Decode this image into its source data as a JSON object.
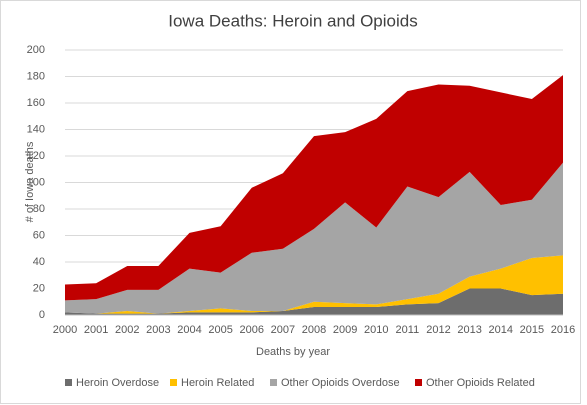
{
  "chart_data": {
    "type": "stacked_area",
    "title": "Iowa Deaths: Heroin and Opioids",
    "x_label": "Deaths by year",
    "y_label": "# of Iowa deaths",
    "categories": [
      "2000",
      "2001",
      "2002",
      "2003",
      "2004",
      "2005",
      "2006",
      "2007",
      "2008",
      "2009",
      "2010",
      "2011",
      "2012",
      "2013",
      "2014",
      "2015",
      "2016"
    ],
    "series": [
      {
        "name": "Heroin Overdose",
        "color": "#6d6d6d",
        "values": [
          2,
          1,
          1,
          1,
          2,
          2,
          2,
          3,
          6,
          6,
          6,
          8,
          9,
          20,
          20,
          15,
          16
        ]
      },
      {
        "name": "Heroin Related",
        "color": "#ffc000",
        "values": [
          0,
          0,
          2,
          0,
          1,
          3,
          1,
          0,
          4,
          3,
          2,
          4,
          7,
          9,
          15,
          28,
          29
        ]
      },
      {
        "name": "Other Opioids Overdose",
        "color": "#a5a5a5",
        "values": [
          9,
          11,
          16,
          18,
          32,
          27,
          44,
          47,
          55,
          76,
          58,
          85,
          73,
          79,
          48,
          44,
          70
        ]
      },
      {
        "name": "Other Opioids Related",
        "color": "#c00000",
        "values": [
          12,
          12,
          18,
          18,
          27,
          35,
          49,
          57,
          70,
          53,
          82,
          72,
          85,
          65,
          85,
          76,
          66
        ]
      }
    ],
    "ylim": [
      0,
      200
    ],
    "yticks": [
      0,
      20,
      40,
      60,
      80,
      100,
      120,
      140,
      160,
      180,
      200
    ],
    "grid": true,
    "legend": "bottom"
  }
}
